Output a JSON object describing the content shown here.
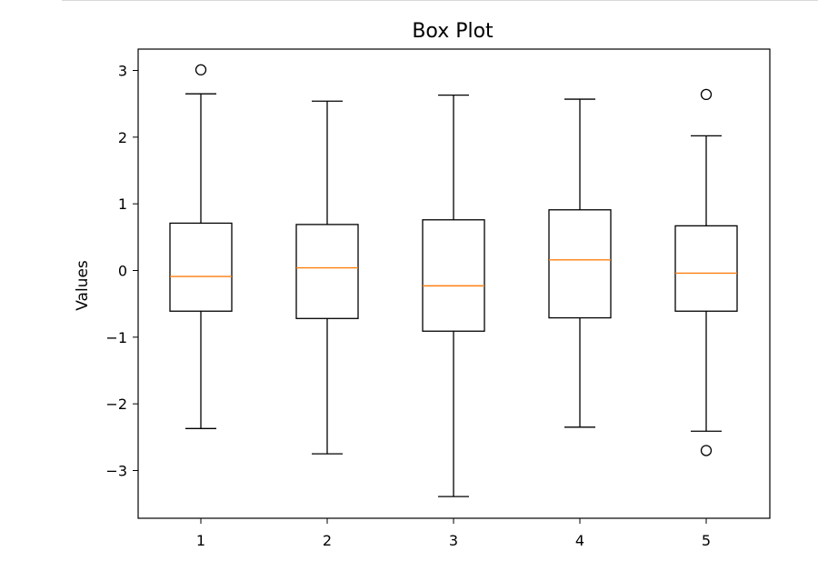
{
  "chart_data": {
    "type": "box",
    "title": "Box Plot",
    "xlabel": "",
    "ylabel": "Values",
    "ylim": [
      -3.7,
      3.3
    ],
    "yticks": [
      3,
      2,
      1,
      0,
      -1,
      -2,
      -3
    ],
    "ytick_labels": [
      "3",
      "2",
      "1",
      "0",
      "−1",
      "−2",
      "−3"
    ],
    "categories": [
      "1",
      "2",
      "3",
      "4",
      "5"
    ],
    "boxes": [
      {
        "label": "1",
        "whisker_low": -2.37,
        "q1": -0.61,
        "median": -0.09,
        "q3": 0.71,
        "whisker_high": 2.65,
        "outliers": [
          3.01
        ]
      },
      {
        "label": "2",
        "whisker_low": -2.75,
        "q1": -0.72,
        "median": 0.04,
        "q3": 0.69,
        "whisker_high": 2.54,
        "outliers": []
      },
      {
        "label": "3",
        "whisker_low": -3.39,
        "q1": -0.91,
        "median": -0.23,
        "q3": 0.76,
        "whisker_high": 2.63,
        "outliers": []
      },
      {
        "label": "4",
        "whisker_low": -2.35,
        "q1": -0.71,
        "median": 0.16,
        "q3": 0.91,
        "whisker_high": 2.57,
        "outliers": []
      },
      {
        "label": "5",
        "whisker_low": -2.41,
        "q1": -0.61,
        "median": -0.04,
        "q3": 0.67,
        "whisker_high": 2.02,
        "outliers": [
          2.64,
          -2.7
        ]
      }
    ],
    "grid": false,
    "colors": {
      "box": "#000000",
      "median": "#ff7f0e",
      "outlier": "#000000"
    }
  }
}
